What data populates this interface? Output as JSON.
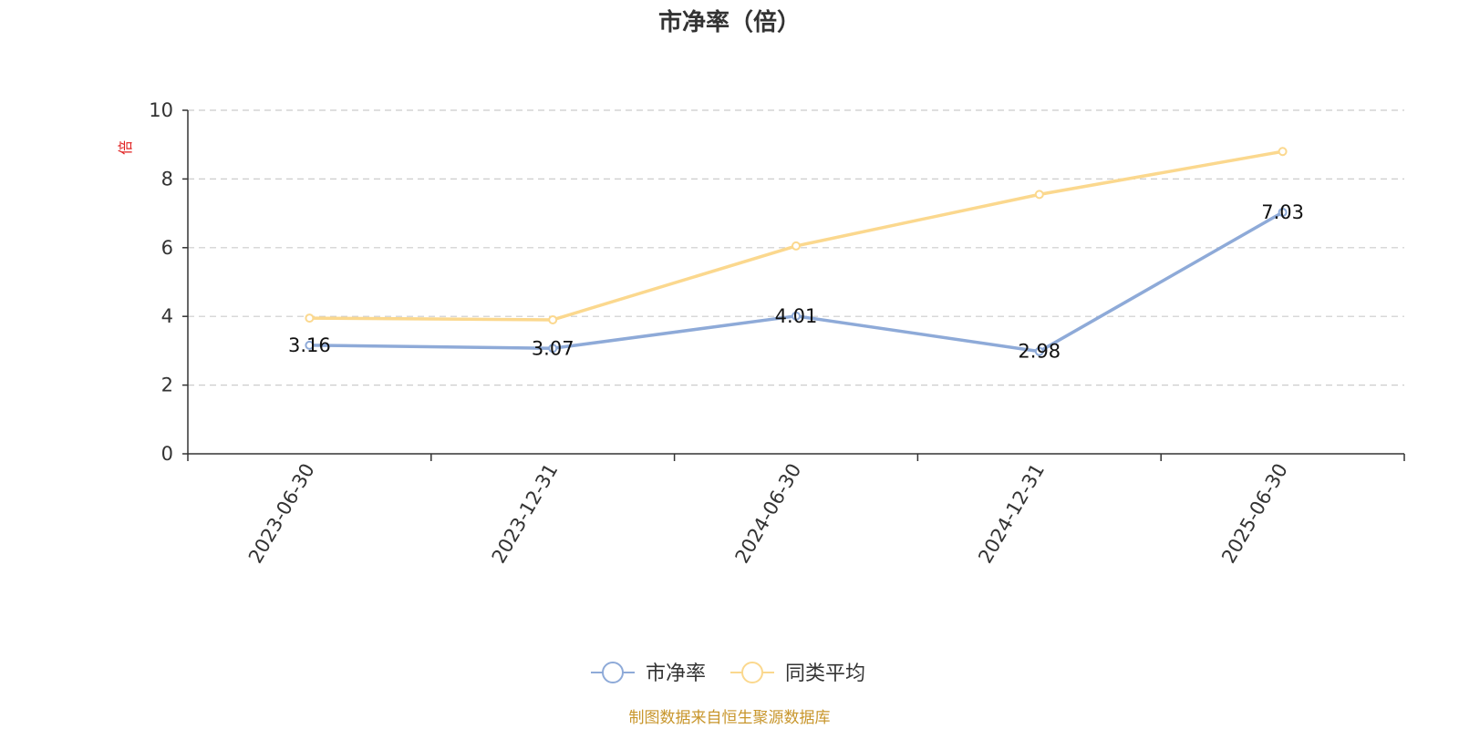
{
  "chart_data": {
    "type": "line",
    "title": "市净率（倍）",
    "ylabel": "倍",
    "xlabel": "",
    "categories": [
      "2023-06-30",
      "2023-12-31",
      "2024-06-30",
      "2024-12-31",
      "2025-06-30"
    ],
    "ylim": [
      0,
      10
    ],
    "yticks": [
      0,
      2,
      4,
      6,
      8,
      10
    ],
    "grid": true,
    "legend_position": "bottom-center",
    "series": [
      {
        "name": "市净率",
        "color": "#8eaad8",
        "values": [
          3.16,
          3.07,
          4.01,
          2.98,
          7.03
        ],
        "labels": [
          "3.16",
          "3.07",
          "4.01",
          "2.98",
          "7.03"
        ]
      },
      {
        "name": "同类平均",
        "color": "#fbd88e",
        "values": [
          3.95,
          3.9,
          6.05,
          7.55,
          8.8
        ]
      }
    ]
  },
  "source_note": "制图数据来自恒生聚源数据库"
}
